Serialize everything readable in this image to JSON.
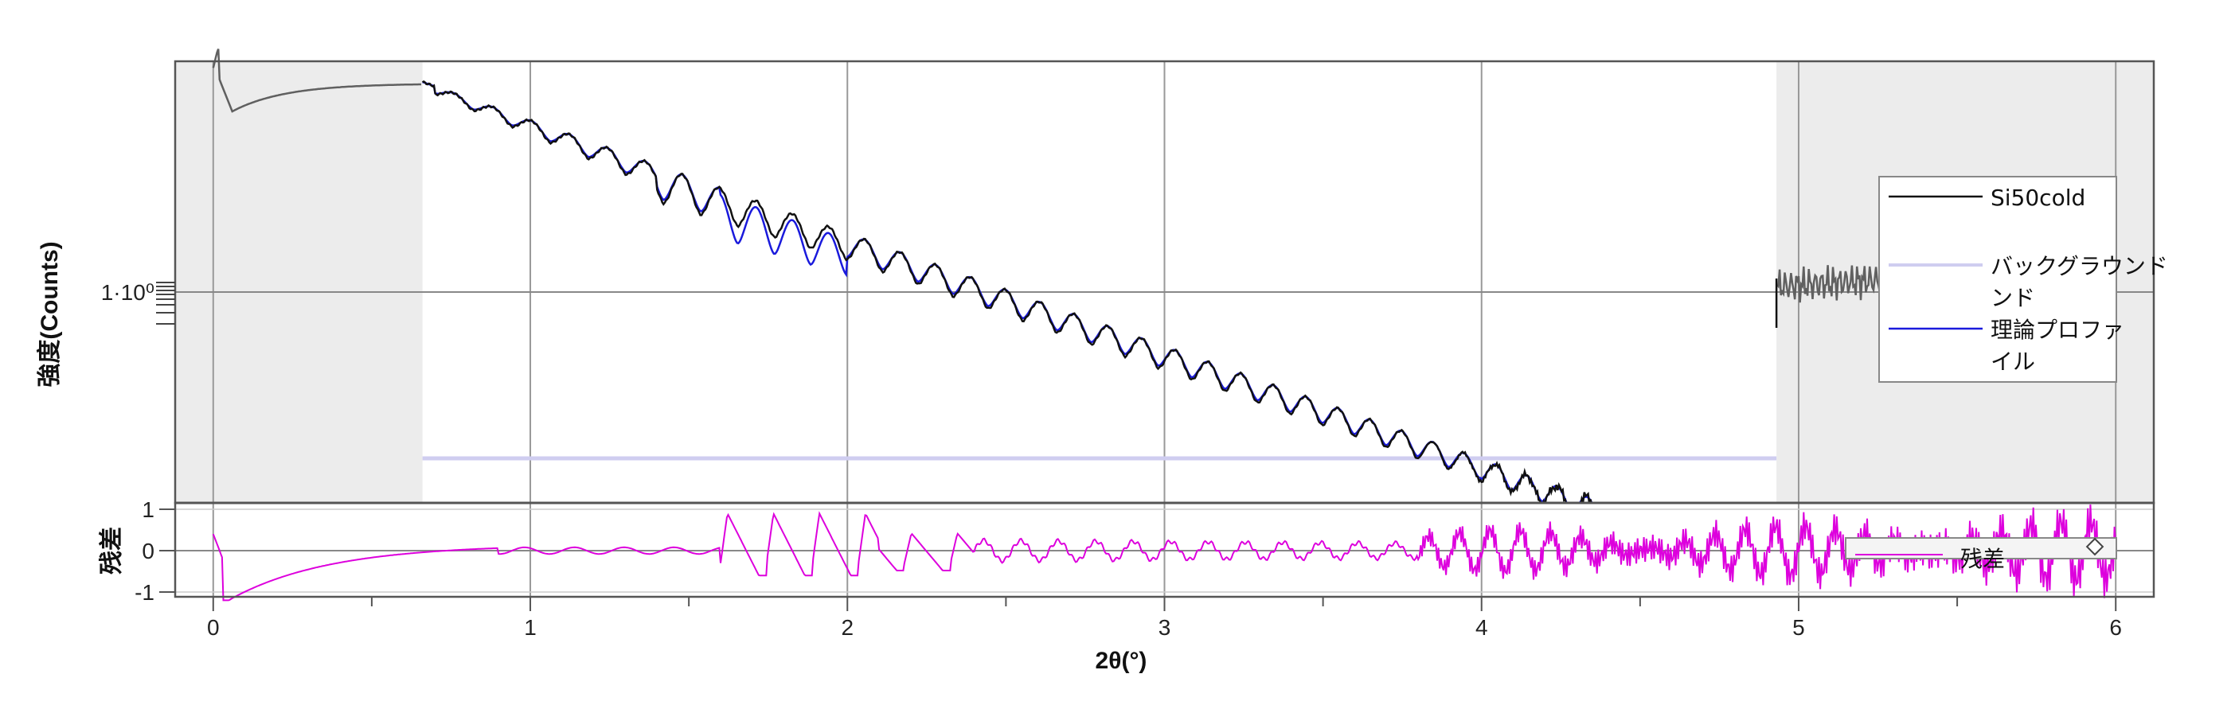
{
  "chart_data": [
    {
      "type": "line",
      "panel": "main",
      "ylabel": "強度(Counts)",
      "y_scale": "log",
      "y_tick_labels": [
        "1·10⁰"
      ],
      "grid": true,
      "xlim": [
        -0.12,
        6.12
      ],
      "excluded_regions": [
        [
          -0.12,
          0.66
        ],
        [
          4.93,
          6.12
        ]
      ],
      "legend_position": "right",
      "legend": [
        "Si50cold",
        "バックグラウンド",
        "理論プロファイル"
      ],
      "legend_lines": [
        [
          "Si50cold"
        ],
        [
          "バックグラウンド",
          "ンド"
        ],
        [
          "理論プロファ",
          "イル"
        ]
      ],
      "colors": {
        "measured": "#111111",
        "measured_excluded": "#606060",
        "background": "#cfcdf0",
        "theory": "#1a1adc",
        "excluded_fill": "#ececec"
      },
      "series": [
        {
          "name": "Si50cold",
          "x_range": [
            0.0,
            6.0
          ],
          "note_visible": "measured reflectivity with ~45 Kiessig fringes, decaying"
        },
        {
          "name": "バックグラウンド",
          "x": [
            0.66,
            4.93
          ],
          "y_level": "flat"
        },
        {
          "name": "理論プロファイル",
          "x_range": [
            0.66,
            4.93
          ]
        }
      ]
    },
    {
      "type": "line",
      "panel": "residual",
      "ylabel": "残差",
      "yticks": [
        1,
        0,
        -1
      ],
      "y_tick_labels": [
        "1",
        "0",
        "-1"
      ],
      "ylim": [
        -1.2,
        1.5
      ],
      "xlabel": "2θ(°)",
      "xticks": [
        0,
        1,
        2,
        3,
        4,
        5,
        6
      ],
      "x_tick_labels": [
        "0",
        "1",
        "2",
        "3",
        "4",
        "5",
        "6"
      ],
      "legend": [
        "残差"
      ],
      "colors": {
        "residual": "#dd00dd"
      },
      "series": [
        {
          "name": "残差",
          "x_range": [
            0.0,
            6.0
          ]
        }
      ]
    }
  ]
}
